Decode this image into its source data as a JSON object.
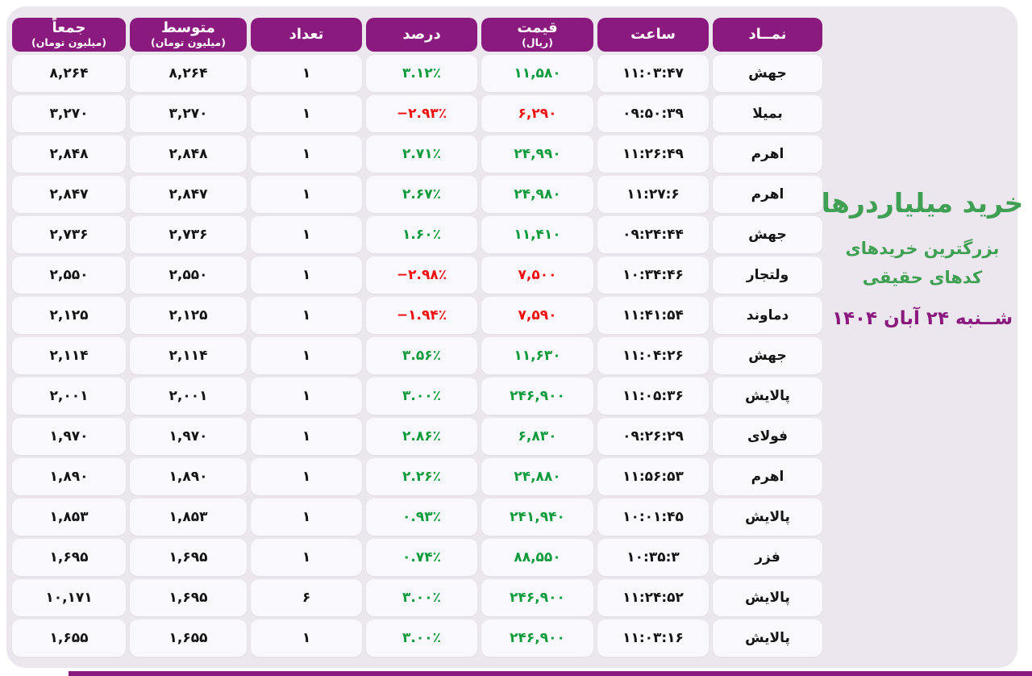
{
  "title": {
    "main": "خرید میلیاردرها",
    "subtitle_line1": "بزرگترین خریدهای",
    "subtitle_line2": "کدهای حقیقی",
    "date": "شــنبه ۲۴ آبان ۱۴۰۴"
  },
  "colors": {
    "accent_purple": "#8a1a7d",
    "positive_green": "#0f9b3b",
    "negative_red": "#ee0f0f",
    "title_green": "#3fa053",
    "panel_background": "#ece7ee",
    "cell_background": "#f9f8fc"
  },
  "table": {
    "columns": [
      {
        "field": "symbol",
        "label": "نمــاد",
        "sub": ""
      },
      {
        "field": "time",
        "label": "ساعت",
        "sub": ""
      },
      {
        "field": "price",
        "label": "قیمت",
        "sub": "(ریال)"
      },
      {
        "field": "percent",
        "label": "درصد",
        "sub": ""
      },
      {
        "field": "count",
        "label": "تعداد",
        "sub": ""
      },
      {
        "field": "avg",
        "label": "متوسط",
        "sub": "(میلیون تومان)"
      },
      {
        "field": "total",
        "label": "جمعاً",
        "sub": "(میلیون تومان)"
      }
    ],
    "rows": [
      {
        "symbol": "جهش",
        "time": "۱۱:۰۳:۴۷",
        "price": "۱۱,۵۸۰",
        "price_color": "green",
        "percent": "۳.۱۲٪",
        "percent_color": "green",
        "count": "۱",
        "avg": "۸,۲۶۴",
        "total": "۸,۲۶۴"
      },
      {
        "symbol": "بمیلا",
        "time": "۰۹:۵۰:۳۹",
        "price": "۶,۲۹۰",
        "price_color": "red",
        "percent": "−۲.۹۳٪",
        "percent_color": "red",
        "count": "۱",
        "avg": "۳,۲۷۰",
        "total": "۳,۲۷۰"
      },
      {
        "symbol": "اهرم",
        "time": "۱۱:۲۶:۴۹",
        "price": "۲۴,۹۹۰",
        "price_color": "green",
        "percent": "۲.۷۱٪",
        "percent_color": "green",
        "count": "۱",
        "avg": "۲,۸۴۸",
        "total": "۲,۸۴۸"
      },
      {
        "symbol": "اهرم",
        "time": "۱۱:۲۷:۶",
        "price": "۲۴,۹۸۰",
        "price_color": "green",
        "percent": "۲.۶۷٪",
        "percent_color": "green",
        "count": "۱",
        "avg": "۲,۸۴۷",
        "total": "۲,۸۴۷"
      },
      {
        "symbol": "جهش",
        "time": "۰۹:۲۴:۴۴",
        "price": "۱۱,۴۱۰",
        "price_color": "green",
        "percent": "۱.۶۰٪",
        "percent_color": "green",
        "count": "۱",
        "avg": "۲,۷۳۶",
        "total": "۲,۷۳۶"
      },
      {
        "symbol": "ولتجار",
        "time": "۱۰:۳۴:۴۶",
        "price": "۷,۵۰۰",
        "price_color": "red",
        "percent": "−۲.۹۸٪",
        "percent_color": "red",
        "count": "۱",
        "avg": "۲,۵۵۰",
        "total": "۲,۵۵۰"
      },
      {
        "symbol": "دماوند",
        "time": "۱۱:۴۱:۵۴",
        "price": "۷,۵۹۰",
        "price_color": "red",
        "percent": "−۱.۹۴٪",
        "percent_color": "red",
        "count": "۱",
        "avg": "۲,۱۲۵",
        "total": "۲,۱۲۵"
      },
      {
        "symbol": "جهش",
        "time": "۱۱:۰۴:۲۶",
        "price": "۱۱,۶۳۰",
        "price_color": "green",
        "percent": "۳.۵۶٪",
        "percent_color": "green",
        "count": "۱",
        "avg": "۲,۱۱۴",
        "total": "۲,۱۱۴"
      },
      {
        "symbol": "پالایش",
        "time": "۱۱:۰۵:۳۶",
        "price": "۲۴۶,۹۰۰",
        "price_color": "green",
        "percent": "۳.۰۰٪",
        "percent_color": "green",
        "count": "۱",
        "avg": "۲,۰۰۱",
        "total": "۲,۰۰۱"
      },
      {
        "symbol": "فولای",
        "time": "۰۹:۲۶:۲۹",
        "price": "۶,۸۳۰",
        "price_color": "green",
        "percent": "۲.۸۶٪",
        "percent_color": "green",
        "count": "۱",
        "avg": "۱,۹۷۰",
        "total": "۱,۹۷۰"
      },
      {
        "symbol": "اهرم",
        "time": "۱۱:۵۶:۵۳",
        "price": "۲۴,۸۸۰",
        "price_color": "green",
        "percent": "۲.۲۶٪",
        "percent_color": "green",
        "count": "۱",
        "avg": "۱,۸۹۰",
        "total": "۱,۸۹۰"
      },
      {
        "symbol": "پالایش",
        "time": "۱۰:۰۱:۴۵",
        "price": "۲۴۱,۹۴۰",
        "price_color": "green",
        "percent": "۰.۹۳٪",
        "percent_color": "green",
        "count": "۱",
        "avg": "۱,۸۵۳",
        "total": "۱,۸۵۳"
      },
      {
        "symbol": "فزر",
        "time": "۱۰:۳۵:۳",
        "price": "۸۸,۵۵۰",
        "price_color": "green",
        "percent": "۰.۷۴٪",
        "percent_color": "green",
        "count": "۱",
        "avg": "۱,۶۹۵",
        "total": "۱,۶۹۵"
      },
      {
        "symbol": "پالایش",
        "time": "۱۱:۲۴:۵۲",
        "price": "۲۴۶,۹۰۰",
        "price_color": "green",
        "percent": "۳.۰۰٪",
        "percent_color": "green",
        "count": "۶",
        "avg": "۱,۶۹۵",
        "total": "۱۰,۱۷۱"
      },
      {
        "symbol": "پالایش",
        "time": "۱۱:۰۳:۱۶",
        "price": "۲۴۶,۹۰۰",
        "price_color": "green",
        "percent": "۳.۰۰٪",
        "percent_color": "green",
        "count": "۱",
        "avg": "۱,۶۵۵",
        "total": "۱,۶۵۵"
      }
    ]
  }
}
